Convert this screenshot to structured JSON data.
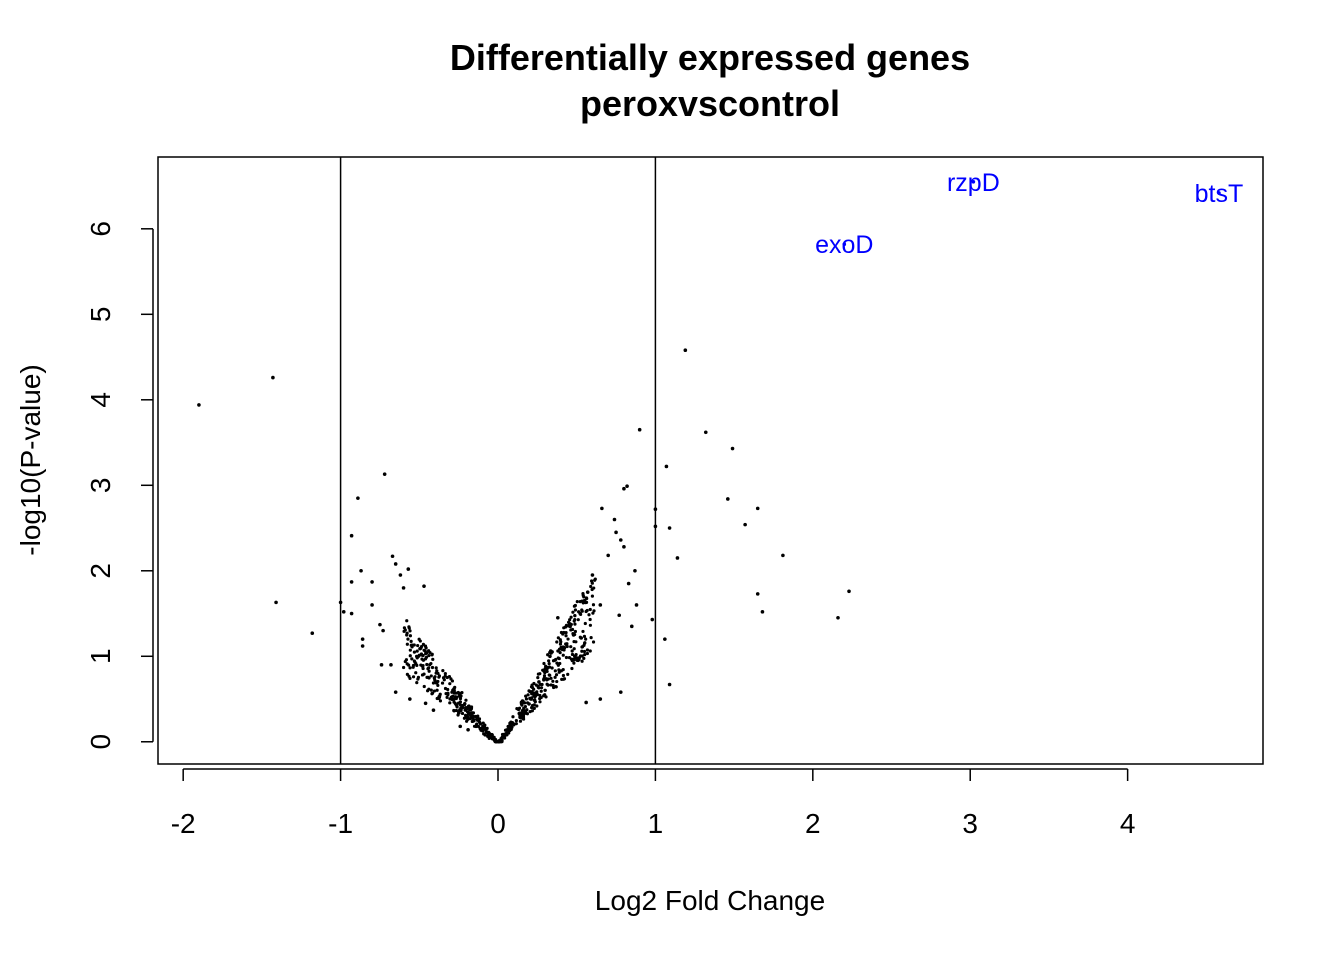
{
  "chart_data": {
    "type": "scatter",
    "title": "Differentially expressed genes",
    "subtitle": "peroxvscontrol",
    "xlabel": "Log2 Fold Change",
    "ylabel": "-log10(P-value)",
    "xlim": [
      -2.16,
      4.86
    ],
    "ylim": [
      -0.26,
      6.84
    ],
    "x_ticks": [
      -2,
      -1,
      0,
      1,
      2,
      3,
      4
    ],
    "y_ticks": [
      0,
      1,
      2,
      3,
      4,
      5,
      6
    ],
    "vlines": [
      -1,
      1
    ],
    "point_color": "#000000",
    "highlight_color": "#0000ff",
    "highlighted": [
      {
        "label": "rzpD",
        "x": 3.02,
        "y": 6.55
      },
      {
        "label": "btsT",
        "x": 4.58,
        "y": 6.42
      },
      {
        "label": "exoD",
        "x": 2.2,
        "y": 5.82
      }
    ],
    "points": [
      [
        -1.9,
        3.94
      ],
      [
        -1.43,
        4.26
      ],
      [
        -1.41,
        1.63
      ],
      [
        -1.18,
        1.27
      ],
      [
        -0.72,
        3.13
      ],
      [
        -0.89,
        2.85
      ],
      [
        -0.93,
        2.41
      ],
      [
        -1.0,
        1.63
      ],
      [
        -0.98,
        1.52
      ],
      [
        -0.93,
        1.5
      ],
      [
        -0.93,
        1.87
      ],
      [
        -0.87,
        2.0
      ],
      [
        -0.86,
        1.2
      ],
      [
        -0.86,
        1.12
      ],
      [
        -0.8,
        1.87
      ],
      [
        -0.8,
        1.6
      ],
      [
        -0.75,
        1.37
      ],
      [
        -0.73,
        1.3
      ],
      [
        -0.74,
        0.9
      ],
      [
        -0.67,
        2.17
      ],
      [
        -0.65,
        2.08
      ],
      [
        -0.62,
        1.95
      ],
      [
        -0.6,
        1.8
      ],
      [
        -0.57,
        2.02
      ],
      [
        -0.47,
        1.82
      ],
      [
        -0.68,
        0.9
      ],
      [
        -0.65,
        0.58
      ],
      [
        -0.56,
        0.5
      ],
      [
        -0.46,
        0.45
      ],
      [
        -0.41,
        0.37
      ],
      [
        -0.24,
        0.18
      ],
      [
        -0.19,
        0.14
      ],
      [
        0.9,
        3.65
      ],
      [
        1.19,
        4.58
      ],
      [
        1.32,
        3.62
      ],
      [
        1.49,
        3.43
      ],
      [
        1.07,
        3.22
      ],
      [
        1.46,
        2.84
      ],
      [
        1.65,
        2.73
      ],
      [
        1.0,
        2.72
      ],
      [
        1.57,
        2.54
      ],
      [
        1.09,
        2.5
      ],
      [
        1.0,
        2.52
      ],
      [
        1.81,
        2.18
      ],
      [
        1.14,
        2.15
      ],
      [
        1.65,
        1.73
      ],
      [
        2.23,
        1.76
      ],
      [
        1.68,
        1.52
      ],
      [
        2.16,
        1.45
      ],
      [
        1.06,
        1.2
      ],
      [
        1.09,
        0.67
      ],
      [
        0.98,
        1.43
      ],
      [
        0.82,
        2.99
      ],
      [
        0.8,
        2.96
      ],
      [
        0.66,
        2.73
      ],
      [
        0.74,
        2.6
      ],
      [
        0.75,
        2.45
      ],
      [
        0.78,
        2.36
      ],
      [
        0.8,
        2.28
      ],
      [
        0.7,
        2.18
      ],
      [
        0.87,
        2.0
      ],
      [
        0.83,
        1.85
      ],
      [
        0.88,
        1.6
      ],
      [
        0.77,
        1.48
      ],
      [
        0.85,
        1.35
      ],
      [
        0.65,
        1.6
      ],
      [
        0.6,
        1.95
      ],
      [
        0.57,
        1.75
      ],
      [
        0.55,
        1.65
      ],
      [
        0.78,
        0.58
      ],
      [
        0.65,
        0.5
      ],
      [
        0.56,
        0.46
      ],
      [
        0.48,
        1.25
      ],
      [
        0.42,
        1.1
      ],
      [
        0.38,
        1.45
      ],
      [
        0.33,
        1.0
      ],
      [
        0.3,
        0.85
      ],
      [
        0.26,
        0.7
      ],
      [
        0.21,
        0.5
      ],
      [
        0.15,
        0.3
      ],
      [
        0.1,
        0.2
      ],
      [
        0.05,
        0.08
      ],
      [
        -0.05,
        0.06
      ],
      [
        -0.1,
        0.15
      ]
    ]
  }
}
